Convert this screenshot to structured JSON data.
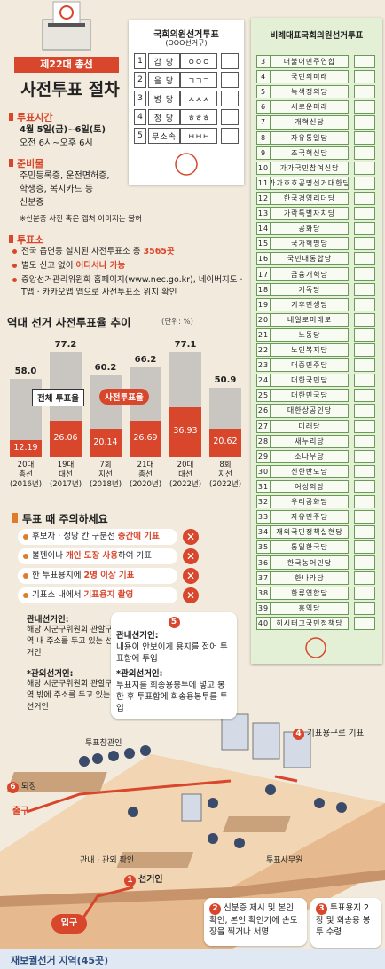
{
  "header": {
    "tag": "제22대 총선",
    "title": "사전투표 절차"
  },
  "info": {
    "time": {
      "label": "투표시간",
      "lines": [
        "4월 5일(금)~6일(토)",
        "오전 6시~오후 6시"
      ]
    },
    "items": {
      "label": "준비물",
      "lines": [
        "주민등록증, 운전면허증,",
        "학생증, 복지카드 등",
        "신분증"
      ],
      "note": "※신분증 사진 혹은 캡처 이미지는 불허"
    },
    "place": {
      "label": "투표소",
      "bullets": [
        [
          "전국 읍면동 설치된 사전투표소 총 ",
          "3565곳"
        ],
        [
          "별도 신고 없이 ",
          "어디서나 가능"
        ],
        [
          "중앙선거관리위원회 홈페이지(www.nec.go.kr), 네이버지도 · T맵 · 카카오맵 앱으로 사전투표소 위치 확인"
        ]
      ]
    }
  },
  "chart_data": {
    "type": "bar",
    "title": "역대 선거 사전투표율 추이",
    "subtitle": "(단위: %)",
    "categories": [
      "20대\n총선\n(2016년)",
      "19대\n대선\n(2017년)",
      "7회\n지선\n(2018년)",
      "21대\n총선\n(2020년)",
      "20대\n대선\n(2022년)",
      "8회\n지선\n(2022년)"
    ],
    "series": [
      {
        "name": "전체 투표율",
        "color": "#c9c6c1",
        "values": [
          58.0,
          77.2,
          60.2,
          66.2,
          77.1,
          50.9
        ],
        "value_labels": [
          "58.0",
          "77.2",
          "60.2",
          "66.2",
          "77.1",
          "50.9"
        ]
      },
      {
        "name": "사전투표율",
        "color": "#d8462c",
        "values": [
          12.19,
          26.06,
          20.14,
          26.69,
          36.93,
          20.62
        ]
      }
    ],
    "ylim": [
      0,
      80
    ]
  },
  "cautions": {
    "title": "투표 때 주의하세요",
    "items": [
      [
        "후보자 · 정당 칸 구분선 ",
        "중간에 기표"
      ],
      [
        "볼펜이나 ",
        "개인 도장 사용",
        "하여 기표"
      ],
      [
        "한 투표용지에 ",
        "2명 이상 기표"
      ],
      [
        "기표소 내에서 ",
        "기표용지 촬영"
      ]
    ]
  },
  "ballot_local": {
    "title": "국회의원선거투표",
    "subtitle": "(OOO선거구)",
    "rows": [
      {
        "num": 1,
        "party": "갑 당",
        "candidate": "ㅇㅇㅇ"
      },
      {
        "num": 2,
        "party": "을 당",
        "candidate": "ㄱㄱㄱ"
      },
      {
        "num": 3,
        "party": "병 당",
        "candidate": "ㅅㅅㅅ"
      },
      {
        "num": 4,
        "party": "정 당",
        "candidate": "ㅎㅎㅎ"
      },
      {
        "num": 5,
        "party": "무소속",
        "candidate": "ㅂㅂㅂ"
      }
    ]
  },
  "ballot_pr": {
    "title": "비례대표국회의원선거투표",
    "rows": [
      {
        "num": 3,
        "party": "더불어민주연합"
      },
      {
        "num": 4,
        "party": "국민의미래"
      },
      {
        "num": 5,
        "party": "녹색정의당"
      },
      {
        "num": 6,
        "party": "새로운미래"
      },
      {
        "num": 7,
        "party": "개혁신당"
      },
      {
        "num": 8,
        "party": "자유통일당"
      },
      {
        "num": 9,
        "party": "조국혁신당"
      },
      {
        "num": 10,
        "party": "가가국민참여신당"
      },
      {
        "num": 11,
        "party": "가가호호공명선거대한당"
      },
      {
        "num": 12,
        "party": "한국경영리더당"
      },
      {
        "num": 13,
        "party": "가락특별자치당"
      },
      {
        "num": 14,
        "party": "공화당"
      },
      {
        "num": 15,
        "party": "국가혁명당"
      },
      {
        "num": 16,
        "party": "국민대통합당"
      },
      {
        "num": 17,
        "party": "금융개혁당"
      },
      {
        "num": 18,
        "party": "기독당"
      },
      {
        "num": 19,
        "party": "기후민생당"
      },
      {
        "num": 20,
        "party": "내일로미래로"
      },
      {
        "num": 21,
        "party": "노동당"
      },
      {
        "num": 22,
        "party": "노인복지당"
      },
      {
        "num": 23,
        "party": "대중민주당"
      },
      {
        "num": 24,
        "party": "대한국민당"
      },
      {
        "num": 25,
        "party": "대한민국당"
      },
      {
        "num": 26,
        "party": "대한상공인당"
      },
      {
        "num": 27,
        "party": "미래당"
      },
      {
        "num": 28,
        "party": "새누리당"
      },
      {
        "num": 29,
        "party": "소나무당"
      },
      {
        "num": 30,
        "party": "신한반도당"
      },
      {
        "num": 31,
        "party": "여성의당"
      },
      {
        "num": 32,
        "party": "우리공화당"
      },
      {
        "num": 33,
        "party": "자유민주당"
      },
      {
        "num": 34,
        "party": "재외국민정책실현당"
      },
      {
        "num": 35,
        "party": "통일한국당"
      },
      {
        "num": 36,
        "party": "한국농어민당"
      },
      {
        "num": 37,
        "party": "한나라당"
      },
      {
        "num": 38,
        "party": "한류연합당"
      },
      {
        "num": 39,
        "party": "홍익당"
      },
      {
        "num": 40,
        "party": "히시태그국민정책당"
      }
    ]
  },
  "scene": {
    "defs": [
      {
        "term": "관내선거인:",
        "desc": "해당 시군구위원회 관할구역 내 주소를 두고 있는 선거인"
      },
      {
        "term": "*관외선거인:",
        "desc": "해당 시군구위원회 관할구역 밖에 주소를 두고 있는 선거인"
      }
    ],
    "step5": {
      "num": "5",
      "lines": [
        {
          "term": "관내선거인:",
          "desc": "내용이 안보이게 용지를 접어 투표함에 투입"
        },
        {
          "term": "*관외선거인:",
          "desc": "투표지를 회송용봉투에 넣고 봉한 후 투표함에 회송용봉투를 투입"
        }
      ]
    },
    "labels": {
      "observer": "투표참관인",
      "step4": "기표용구로 기표",
      "step4_num": "4",
      "step6": "퇴장",
      "step6_num": "6",
      "exit": "출구",
      "check": "관내 · 관외 확인",
      "voter": "선거인",
      "voter_num": "1",
      "clerk": "투표사무원",
      "entrance": "입구"
    },
    "step2": {
      "num": "2",
      "text": "신분증 제시 및 본인 확인, 본인 확인기에 손도장을 찍거나 서명"
    },
    "step3": {
      "num": "3",
      "text": "투표용지 2장 및 회송용 봉투 수령"
    }
  },
  "footer": "재보궐선거 지역(45곳)"
}
